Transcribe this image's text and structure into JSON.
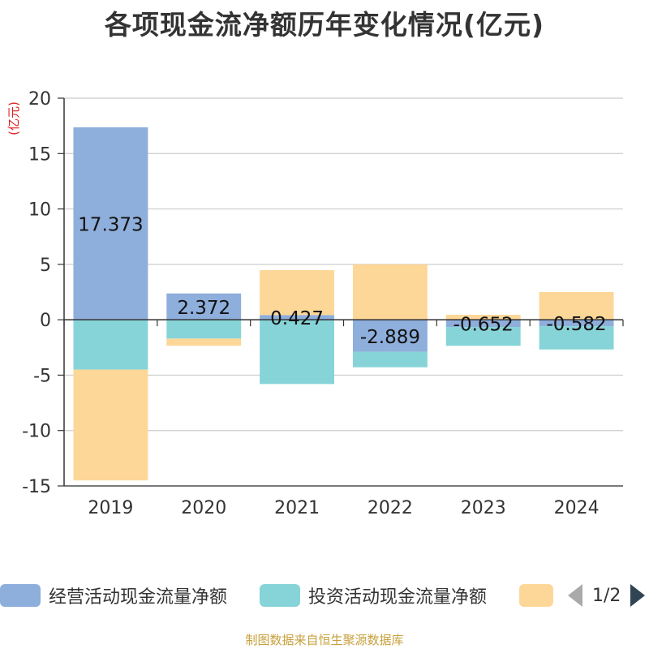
{
  "chart_data": {
    "type": "bar",
    "stacked": true,
    "title": "各项现金流净额历年变化情况(亿元)",
    "ylabel": "(亿元)",
    "xlabel": "",
    "ylim": [
      -15,
      20
    ],
    "yticks": [
      20,
      15,
      10,
      5,
      0,
      -5,
      -10,
      -15
    ],
    "categories": [
      "2019",
      "2020",
      "2021",
      "2022",
      "2023",
      "2024"
    ],
    "grid": true,
    "legend_placement": "bottom",
    "series": [
      {
        "name": "经营活动现金流量净额",
        "color": "#8eaedb",
        "values": [
          17.373,
          2.372,
          0.427,
          -2.889,
          -0.652,
          -0.582
        ],
        "labels": [
          "17.373",
          "2.372",
          "0.427",
          "-2.889",
          "-0.652",
          "-0.582"
        ]
      },
      {
        "name": "投资活动现金流量净额",
        "color": "#86d4d8",
        "values": [
          -4.5,
          -1.7,
          -5.8,
          -1.4,
          -1.7,
          -2.1
        ]
      },
      {
        "name": "",
        "color": "#fdd798",
        "values": [
          -10.0,
          -0.65,
          4.05,
          5.0,
          0.45,
          2.5
        ]
      }
    ]
  },
  "legend": {
    "page_indicator": "1/2"
  },
  "footer": {
    "source": "制图数据来自恒生聚源数据库"
  }
}
